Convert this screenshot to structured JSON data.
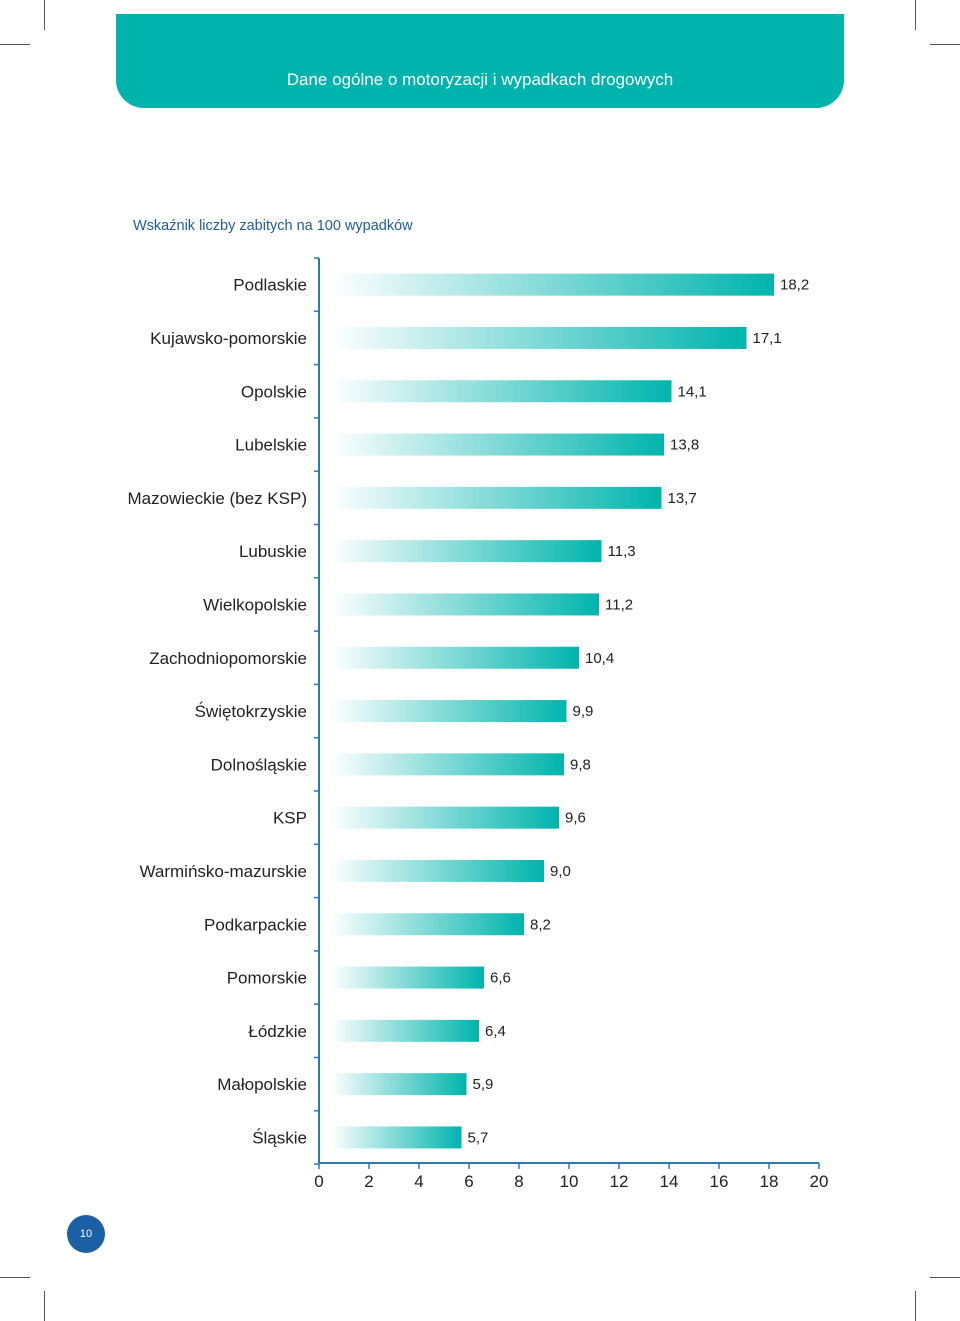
{
  "header": {
    "title": "Dane ogólne o motoryzacji i wypadkach drogowych"
  },
  "colors": {
    "accent": "#00b4ad",
    "accent_light": "#ffffff",
    "axis": "#2a7ab8",
    "title_text": "#1d5d9a",
    "badge": "#1b5fa6"
  },
  "page_number": "10",
  "chart_data": {
    "type": "bar",
    "orientation": "horizontal",
    "title": "Wskaźnik liczby zabitych na 100 wypadków",
    "xlabel": "",
    "ylabel": "",
    "xlim": [
      0,
      20
    ],
    "x_ticks": [
      "0",
      "2",
      "4",
      "6",
      "8",
      "10",
      "12",
      "14",
      "16",
      "18",
      "20"
    ],
    "grid": false,
    "categories": [
      "Podlaskie",
      "Kujawsko-pomorskie",
      "Opolskie",
      "Lubelskie",
      "Mazowieckie (bez KSP)",
      "Lubuskie",
      "Wielkopolskie",
      "Zachodniopomorskie",
      "Świętokrzyskie",
      "Dolnośląskie",
      "KSP",
      "Warmińsko-mazurskie",
      "Podkarpackie",
      "Pomorskie",
      "Łódzkie",
      "Małopolskie",
      "Śląskie"
    ],
    "values": [
      18.2,
      17.1,
      14.1,
      13.8,
      13.7,
      11.3,
      11.2,
      10.4,
      9.9,
      9.8,
      9.6,
      9.0,
      8.2,
      6.6,
      6.4,
      5.9,
      5.7
    ],
    "value_labels": [
      "18,2",
      "17,1",
      "14,1",
      "13,8",
      "13,7",
      "11,3",
      "11,2",
      "10,4",
      "9,9",
      "9,8",
      "9,6",
      "9,0",
      "8,2",
      "6,6",
      "6,4",
      "5,9",
      "5,7"
    ]
  }
}
